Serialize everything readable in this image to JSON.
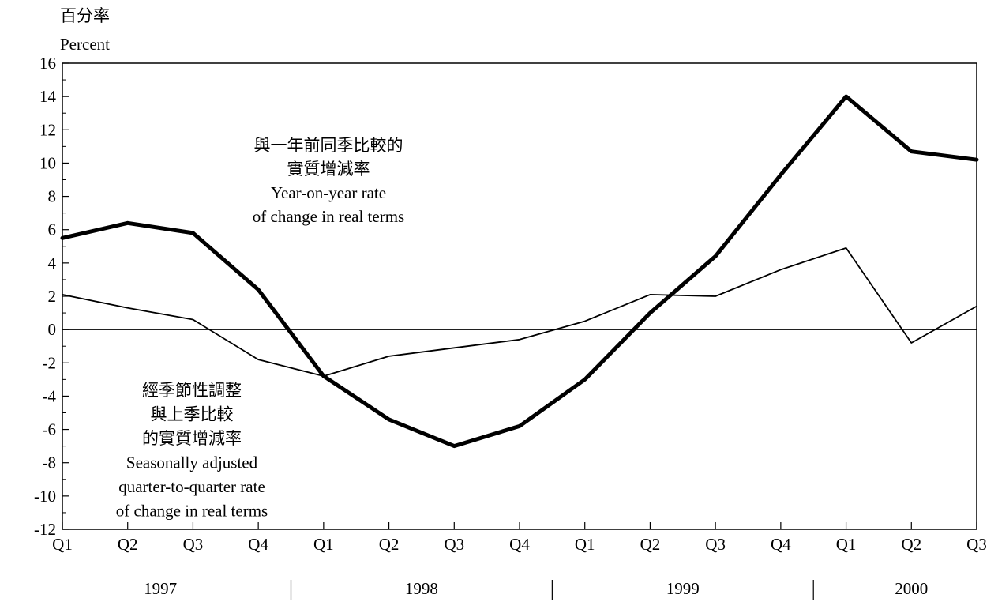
{
  "chart_data": {
    "type": "line",
    "unit_label_zh": "百分率",
    "unit_label_en": "Percent",
    "ylim": [
      -12,
      16
    ],
    "y_ticks": [
      16,
      14,
      12,
      10,
      8,
      6,
      4,
      2,
      0,
      -2,
      -4,
      -6,
      -8,
      -10,
      -12
    ],
    "x_tick_labels": [
      "Q1",
      "Q2",
      "Q3",
      "Q4",
      "Q1",
      "Q2",
      "Q3",
      "Q4",
      "Q1",
      "Q2",
      "Q3",
      "Q4",
      "Q1",
      "Q2",
      "Q3"
    ],
    "year_groups": [
      {
        "label": "1997",
        "start": 0,
        "end": 3
      },
      {
        "label": "1998",
        "start": 4,
        "end": 7
      },
      {
        "label": "1999",
        "start": 8,
        "end": 11
      },
      {
        "label": "2000",
        "start": 12,
        "end": 14
      }
    ],
    "series": [
      {
        "values": [
          5.5,
          6.4,
          5.8,
          2.4,
          -2.8,
          -5.4,
          -7.0,
          -5.8,
          -3.0,
          1.0,
          4.4,
          9.3,
          14.0,
          10.7,
          10.2
        ],
        "color": "#000000",
        "width": "thick"
      },
      {
        "values": [
          2.1,
          1.3,
          0.6,
          -1.8,
          -2.8,
          -1.6,
          -1.1,
          -0.6,
          0.5,
          2.1,
          2.0,
          3.6,
          4.9,
          -0.8,
          1.4
        ],
        "color": "#000000",
        "width": "thin"
      }
    ],
    "annotations": [
      {
        "lines": [
          "與一年前同季比較的",
          "實質增減率",
          "Year-on-year rate",
          "of change in real terms"
        ]
      },
      {
        "lines": [
          "經季節性調整",
          "與上季比較",
          "的實質增減率",
          "Seasonally adjusted",
          "quarter-to-quarter rate",
          "of change in real terms"
        ]
      }
    ]
  }
}
